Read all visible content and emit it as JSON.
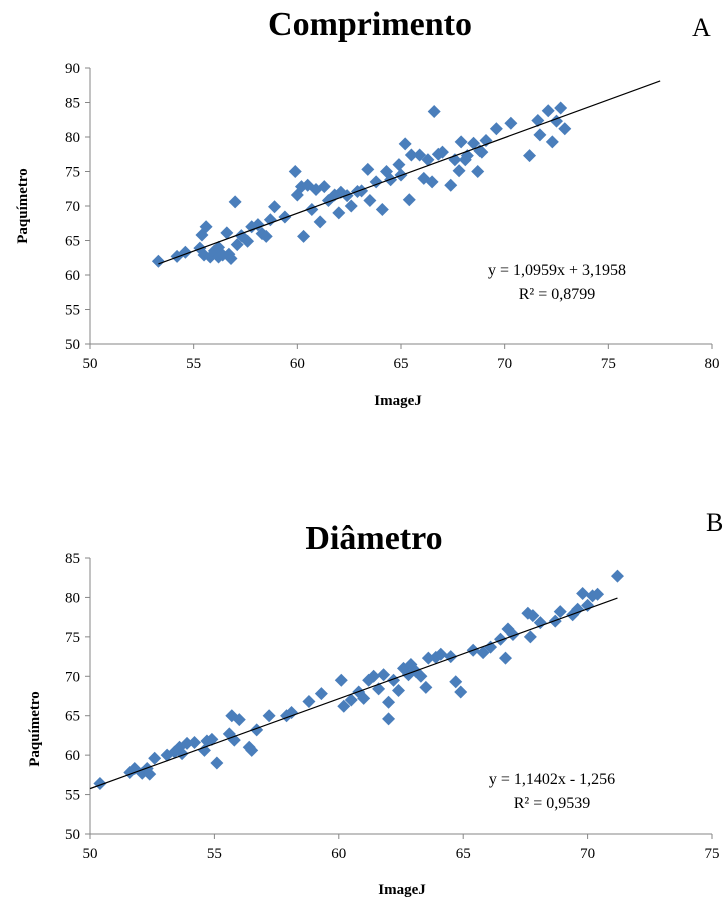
{
  "panels": [
    {
      "letter": "A",
      "title": "Comprimento",
      "xlabel": "ImageJ",
      "ylabel": "Paquímetro",
      "equation": "y = 1,0959x + 3,1958",
      "r2": "R² = 0,8799"
    },
    {
      "letter": "B",
      "title": "Diâmetro",
      "xlabel": "ImageJ",
      "ylabel": "Paquímetro",
      "equation": "y = 1,1402x - 1,256",
      "r2": "R² = 0,9539"
    }
  ],
  "chart_data": [
    {
      "type": "scatter",
      "title": "Comprimento",
      "xlabel": "ImageJ",
      "ylabel": "Paquímetro",
      "xlim": [
        50,
        80
      ],
      "ylim": [
        50,
        90
      ],
      "xticks": [
        50,
        55,
        60,
        65,
        70,
        75,
        80
      ],
      "yticks": [
        50,
        55,
        60,
        65,
        70,
        75,
        80,
        85,
        90
      ],
      "grid": false,
      "legend": "none",
      "marker_color": "#4a7ebb",
      "trendline": {
        "slope": 1.0959,
        "intercept": 3.1958,
        "x_range": [
          53.3,
          77.5
        ]
      },
      "points": [
        [
          53.3,
          62.0
        ],
        [
          54.2,
          62.7
        ],
        [
          54.6,
          63.3
        ],
        [
          55.3,
          63.9
        ],
        [
          55.4,
          65.8
        ],
        [
          55.6,
          67.0
        ],
        [
          55.5,
          62.9
        ],
        [
          55.8,
          62.6
        ],
        [
          56.0,
          63.5
        ],
        [
          56.2,
          64.0
        ],
        [
          56.2,
          62.6
        ],
        [
          56.4,
          62.9
        ],
        [
          56.6,
          66.1
        ],
        [
          56.7,
          63.0
        ],
        [
          56.8,
          62.4
        ],
        [
          57.0,
          70.6
        ],
        [
          57.1,
          64.4
        ],
        [
          57.3,
          65.7
        ],
        [
          57.6,
          64.9
        ],
        [
          57.8,
          67.0
        ],
        [
          58.1,
          67.3
        ],
        [
          58.3,
          66.0
        ],
        [
          58.5,
          65.6
        ],
        [
          58.7,
          68.0
        ],
        [
          58.9,
          69.9
        ],
        [
          59.4,
          68.4
        ],
        [
          59.9,
          75.0
        ],
        [
          60.0,
          71.6
        ],
        [
          60.2,
          72.8
        ],
        [
          60.3,
          65.6
        ],
        [
          60.5,
          73.0
        ],
        [
          60.7,
          69.5
        ],
        [
          60.9,
          72.4
        ],
        [
          61.1,
          67.7
        ],
        [
          61.3,
          72.8
        ],
        [
          61.5,
          70.8
        ],
        [
          61.8,
          71.6
        ],
        [
          62.0,
          69.0
        ],
        [
          62.1,
          72.0
        ],
        [
          62.4,
          71.5
        ],
        [
          62.6,
          70.0
        ],
        [
          62.9,
          72.1
        ],
        [
          63.1,
          72.2
        ],
        [
          63.4,
          75.3
        ],
        [
          63.5,
          70.8
        ],
        [
          63.8,
          73.5
        ],
        [
          64.1,
          69.5
        ],
        [
          64.3,
          75.0
        ],
        [
          64.5,
          73.8
        ],
        [
          64.9,
          76.0
        ],
        [
          65.0,
          74.5
        ],
        [
          65.2,
          79.0
        ],
        [
          65.4,
          70.9
        ],
        [
          65.5,
          77.4
        ],
        [
          65.9,
          77.4
        ],
        [
          66.1,
          74.0
        ],
        [
          66.3,
          76.7
        ],
        [
          66.5,
          73.5
        ],
        [
          66.6,
          83.7
        ],
        [
          66.8,
          77.5
        ],
        [
          67.0,
          77.8
        ],
        [
          67.4,
          73.0
        ],
        [
          67.6,
          76.7
        ],
        [
          67.8,
          75.1
        ],
        [
          67.9,
          79.3
        ],
        [
          68.1,
          76.7
        ],
        [
          68.2,
          77.3
        ],
        [
          68.5,
          79.1
        ],
        [
          68.7,
          75.0
        ],
        [
          68.8,
          78.0
        ],
        [
          68.9,
          77.8
        ],
        [
          69.1,
          79.5
        ],
        [
          69.6,
          81.2
        ],
        [
          70.3,
          82.0
        ],
        [
          71.2,
          77.3
        ],
        [
          71.6,
          82.4
        ],
        [
          71.7,
          80.3
        ],
        [
          72.1,
          83.8
        ],
        [
          72.3,
          79.3
        ],
        [
          72.5,
          82.3
        ],
        [
          72.7,
          84.2
        ],
        [
          72.9,
          81.2
        ]
      ]
    },
    {
      "type": "scatter",
      "title": "Diâmetro",
      "xlabel": "ImageJ",
      "ylabel": "Paquímetro",
      "xlim": [
        50,
        75
      ],
      "ylim": [
        50,
        85
      ],
      "xticks": [
        50,
        55,
        60,
        65,
        70,
        75
      ],
      "yticks": [
        50,
        55,
        60,
        65,
        70,
        75,
        80,
        85
      ],
      "grid": false,
      "legend": "none",
      "marker_color": "#4a7ebb",
      "trendline": {
        "slope": 1.1402,
        "intercept": -1.256,
        "x_range": [
          50.0,
          71.2
        ]
      },
      "points": [
        [
          50.4,
          56.4
        ],
        [
          51.6,
          57.8
        ],
        [
          51.8,
          58.3
        ],
        [
          52.1,
          57.7
        ],
        [
          52.3,
          58.3
        ],
        [
          52.4,
          57.6
        ],
        [
          52.6,
          59.6
        ],
        [
          53.1,
          60.0
        ],
        [
          53.4,
          60.4
        ],
        [
          53.6,
          61.0
        ],
        [
          53.7,
          60.2
        ],
        [
          53.9,
          61.5
        ],
        [
          54.2,
          61.6
        ],
        [
          54.6,
          60.6
        ],
        [
          54.7,
          61.8
        ],
        [
          54.9,
          62.0
        ],
        [
          55.1,
          59.0
        ],
        [
          55.6,
          62.7
        ],
        [
          55.7,
          65.0
        ],
        [
          55.8,
          61.9
        ],
        [
          56.0,
          64.5
        ],
        [
          56.4,
          61.0
        ],
        [
          56.5,
          60.6
        ],
        [
          56.7,
          63.2
        ],
        [
          57.2,
          65.0
        ],
        [
          57.9,
          65.0
        ],
        [
          58.1,
          65.4
        ],
        [
          58.8,
          66.8
        ],
        [
          59.3,
          67.8
        ],
        [
          60.1,
          69.5
        ],
        [
          60.2,
          66.2
        ],
        [
          60.5,
          67.0
        ],
        [
          60.8,
          68.0
        ],
        [
          61.0,
          67.2
        ],
        [
          61.2,
          69.5
        ],
        [
          61.4,
          70.0
        ],
        [
          61.6,
          68.4
        ],
        [
          61.8,
          70.2
        ],
        [
          62.0,
          64.6
        ],
        [
          62.0,
          66.7
        ],
        [
          62.2,
          69.5
        ],
        [
          62.4,
          68.2
        ],
        [
          62.6,
          71.0
        ],
        [
          62.8,
          70.2
        ],
        [
          62.9,
          71.5
        ],
        [
          63.1,
          70.6
        ],
        [
          63.3,
          70.0
        ],
        [
          63.5,
          68.6
        ],
        [
          63.6,
          72.3
        ],
        [
          63.9,
          72.4
        ],
        [
          64.1,
          72.8
        ],
        [
          64.5,
          72.5
        ],
        [
          64.7,
          69.3
        ],
        [
          64.9,
          68.0
        ],
        [
          65.4,
          73.3
        ],
        [
          65.8,
          73.0
        ],
        [
          66.1,
          73.7
        ],
        [
          66.5,
          74.7
        ],
        [
          66.7,
          72.3
        ],
        [
          66.8,
          76.0
        ],
        [
          67.0,
          75.3
        ],
        [
          67.6,
          78.0
        ],
        [
          67.7,
          75.0
        ],
        [
          67.8,
          77.7
        ],
        [
          68.1,
          76.8
        ],
        [
          68.7,
          77.0
        ],
        [
          68.9,
          78.2
        ],
        [
          69.4,
          77.8
        ],
        [
          69.6,
          78.5
        ],
        [
          69.8,
          80.5
        ],
        [
          70.0,
          79.0
        ],
        [
          70.2,
          80.2
        ],
        [
          70.4,
          80.4
        ],
        [
          71.2,
          82.7
        ]
      ]
    }
  ]
}
